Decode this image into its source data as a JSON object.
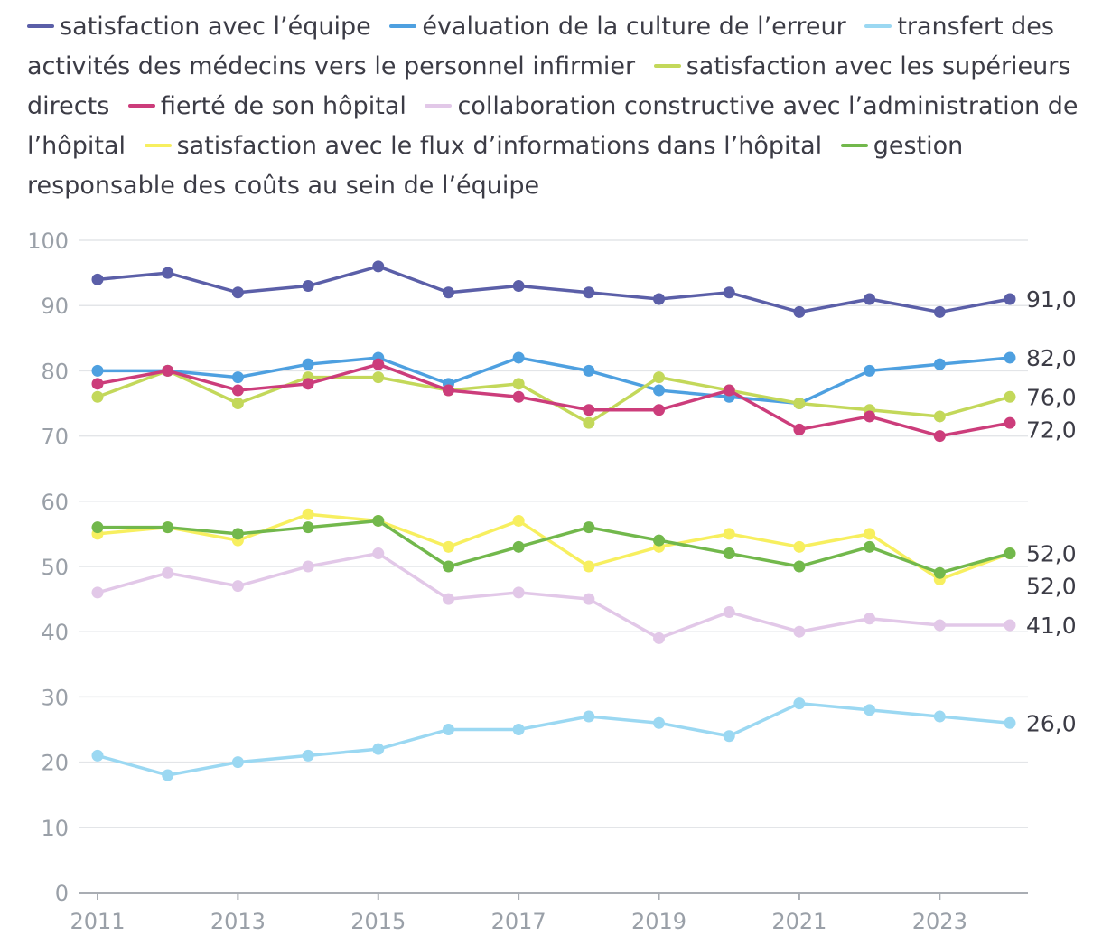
{
  "chart_data": {
    "type": "line",
    "x": [
      "2011",
      "2012",
      "2013",
      "2014",
      "2015",
      "2016",
      "2017",
      "2018",
      "2019",
      "2020",
      "2021",
      "2022",
      "2023",
      "2024"
    ],
    "x_tick_labels": [
      "2011",
      "2013",
      "2015",
      "2017",
      "2019",
      "2021",
      "2023"
    ],
    "ylim": [
      0,
      100
    ],
    "y_ticks": [
      "0",
      "10",
      "20",
      "30",
      "40",
      "50",
      "60",
      "70",
      "80",
      "90",
      "100"
    ],
    "grid": "horizontal",
    "legend_position": "top",
    "series": [
      {
        "name": "satisfaction avec l’équipe",
        "color": "#5b5fa8",
        "values": [
          94,
          95,
          92,
          93,
          96,
          92,
          93,
          92,
          91,
          92,
          89,
          91,
          89,
          91
        ],
        "end_label": "91,0"
      },
      {
        "name": "évaluation de la culture de l’erreur",
        "color": "#4ea0e0",
        "values": [
          80,
          80,
          79,
          81,
          82,
          78,
          82,
          80,
          77,
          76,
          75,
          80,
          81,
          82
        ],
        "end_label": "82,0"
      },
      {
        "name": "transfert des activités des médecins vers le personnel infirmier",
        "color": "#9bd8f2",
        "values": [
          21,
          18,
          20,
          21,
          22,
          25,
          25,
          27,
          26,
          24,
          29,
          28,
          27,
          26
        ],
        "end_label": "26,0"
      },
      {
        "name": "satisfaction avec les supérieurs directs",
        "color": "#c3d85a",
        "values": [
          76,
          80,
          75,
          79,
          79,
          77,
          78,
          72,
          79,
          77,
          75,
          74,
          73,
          76
        ],
        "end_label": "76,0"
      },
      {
        "name": "fierté de son hôpital",
        "color": "#cc3d7b",
        "values": [
          78,
          80,
          77,
          78,
          81,
          77,
          76,
          74,
          74,
          77,
          71,
          73,
          70,
          72
        ],
        "end_label": "72,0"
      },
      {
        "name": "collaboration constructive avec l’administration de l’hôpital",
        "color": "#e2c8e8",
        "values": [
          46,
          49,
          47,
          50,
          52,
          45,
          46,
          45,
          39,
          43,
          40,
          42,
          41,
          41
        ],
        "end_label": "41,0"
      },
      {
        "name": "satisfaction avec le flux d’informations dans l’hôpital",
        "color": "#f7ef5f",
        "values": [
          55,
          56,
          54,
          58,
          57,
          53,
          57,
          50,
          53,
          55,
          53,
          55,
          48,
          52
        ],
        "end_label": "52,0"
      },
      {
        "name": "gestion responsable des coûts au sein de l’équipe",
        "color": "#72b84c",
        "values": [
          56,
          56,
          55,
          56,
          57,
          50,
          53,
          56,
          54,
          52,
          50,
          53,
          49,
          52
        ],
        "end_label": "52,0"
      }
    ]
  }
}
